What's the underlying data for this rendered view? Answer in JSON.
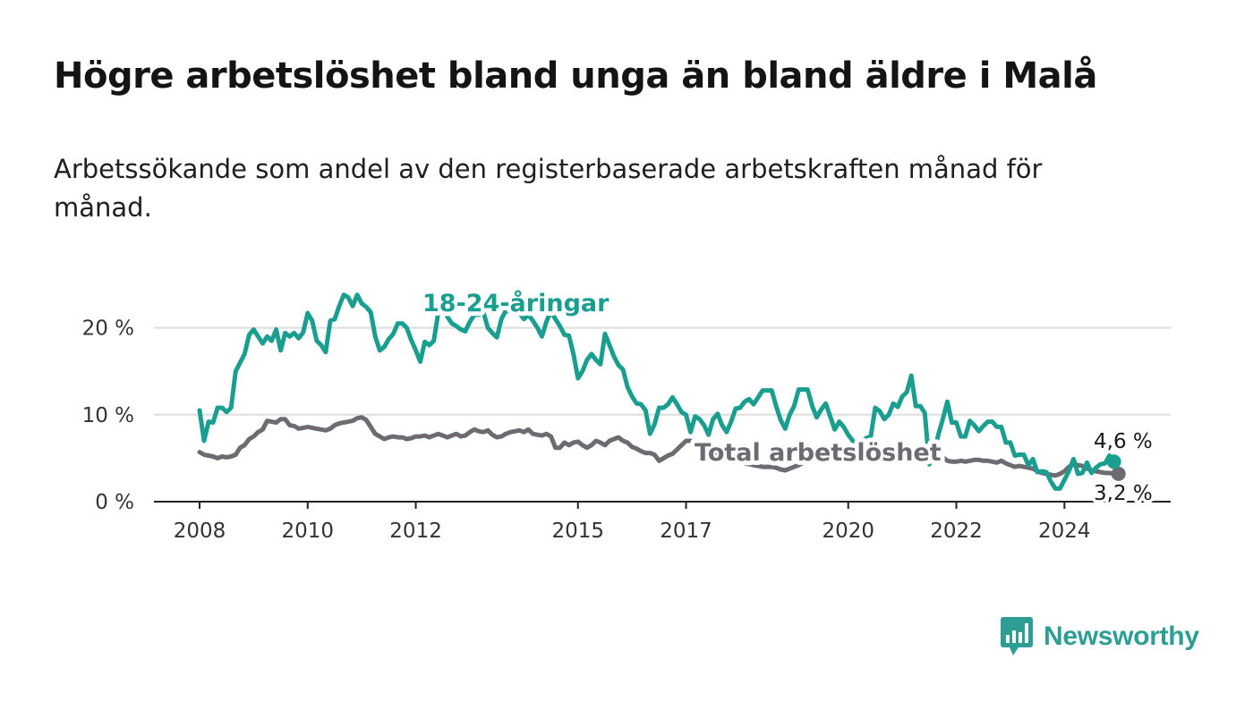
{
  "title": "Högre arbetslöshet bland unga än bland äldre i Malå",
  "subtitle": "Arbetssökande som andel av den registerbaserade arbetskraften månad för månad.",
  "brand": {
    "name": "Newsworthy",
    "logo_icon": "bar-chart-speech-bubble-icon",
    "color": "#2e9e95"
  },
  "chart_data": {
    "type": "line",
    "ylim": [
      0,
      25
    ],
    "xlim": [
      2008.0,
      2025.75
    ],
    "yticks": [
      {
        "value": 0,
        "label": "0 %"
      },
      {
        "value": 10,
        "label": "10 %"
      },
      {
        "value": 20,
        "label": "20 %"
      }
    ],
    "xticks": [
      {
        "value": 2008,
        "label": "2008"
      },
      {
        "value": 2010,
        "label": "2010"
      },
      {
        "value": 2012,
        "label": "2012"
      },
      {
        "value": 2015,
        "label": "2015"
      },
      {
        "value": 2017,
        "label": "2017"
      },
      {
        "value": 2020,
        "label": "2020"
      },
      {
        "value": 2022,
        "label": "2022"
      },
      {
        "value": 2024,
        "label": "2024"
      }
    ],
    "grid": true,
    "x_start": 2008.0,
    "x_step": 0.083333,
    "series": [
      {
        "name": "18-24-åringar",
        "color": "#1a9e90",
        "end_label": "4,6 %",
        "values": [
          10.5,
          7.0,
          9.2,
          9.1,
          10.8,
          10.8,
          10.3,
          10.8,
          15.0,
          16.0,
          17.0,
          19.2,
          19.8,
          19.0,
          18.2,
          19.0,
          18.5,
          19.8,
          17.4,
          19.4,
          19.0,
          19.4,
          18.8,
          19.5,
          21.7,
          20.8,
          18.5,
          18.0,
          17.2,
          20.8,
          21.0,
          22.5,
          23.8,
          23.5,
          22.5,
          23.8,
          22.8,
          22.4,
          21.8,
          19.0,
          17.4,
          17.8,
          18.7,
          19.3,
          20.5,
          20.5,
          20.0,
          18.6,
          17.4,
          16.1,
          18.4,
          18.0,
          18.5,
          21.8,
          22.5,
          21.3,
          20.5,
          20.2,
          19.8,
          19.6,
          20.7,
          21.5,
          21.5,
          21.8,
          20.0,
          19.4,
          18.9,
          21.0,
          22.0,
          21.8,
          22.2,
          21.7,
          21.0,
          21.5,
          20.8,
          20.0,
          19.0,
          20.7,
          21.9,
          21.0,
          20.2,
          19.2,
          19.1,
          17.0,
          14.2,
          15.0,
          16.3,
          17.0,
          16.3,
          15.8,
          19.3,
          18.0,
          16.7,
          15.7,
          15.2,
          13.2,
          12.1,
          11.3,
          11.2,
          10.5,
          7.8,
          8.9,
          10.8,
          10.8,
          11.2,
          12.0,
          11.2,
          10.3,
          10.0,
          8.0,
          9.8,
          9.5,
          8.8,
          7.7,
          9.5,
          10.1,
          8.8,
          8.0,
          9.2,
          10.7,
          10.8,
          11.5,
          11.8,
          11.2,
          12.0,
          12.8,
          12.8,
          12.8,
          11.0,
          9.4,
          8.4,
          10.0,
          11.0,
          12.9,
          12.9,
          12.9,
          11.0,
          9.7,
          10.6,
          11.3,
          9.8,
          8.3,
          9.2,
          8.6,
          7.7,
          7.0,
          6.7,
          7.0,
          7.3,
          7.5,
          10.8,
          10.4,
          9.5,
          10.0,
          11.3,
          10.9,
          12.1,
          12.6,
          14.5,
          11.0,
          11.0,
          10.2,
          4.3,
          5.5,
          7.7,
          9.5,
          11.5,
          9.1,
          9.1,
          7.5,
          7.5,
          9.3,
          8.8,
          8.1,
          8.7,
          9.2,
          9.2,
          8.6,
          8.6,
          6.8,
          6.8,
          5.3,
          5.4,
          5.4,
          4.2,
          4.9,
          3.4,
          3.5,
          3.4,
          2.3,
          1.5,
          1.5,
          2.5,
          3.5,
          4.9,
          3.2,
          3.3,
          4.5,
          3.3,
          3.9,
          4.3,
          4.4,
          5.3,
          4.6
        ]
      },
      {
        "name": "Total arbetslöshet",
        "color": "#6e6a72",
        "end_label": "3,2 %",
        "values": [
          5.7,
          5.4,
          5.3,
          5.2,
          5.0,
          5.2,
          5.1,
          5.2,
          5.4,
          6.2,
          6.5,
          7.2,
          7.5,
          8.0,
          8.3,
          9.3,
          9.2,
          9.1,
          9.5,
          9.5,
          8.8,
          8.7,
          8.4,
          8.5,
          8.6,
          8.5,
          8.4,
          8.3,
          8.2,
          8.4,
          8.8,
          9.0,
          9.1,
          9.2,
          9.3,
          9.6,
          9.7,
          9.4,
          8.6,
          7.8,
          7.5,
          7.2,
          7.4,
          7.5,
          7.4,
          7.4,
          7.2,
          7.3,
          7.5,
          7.5,
          7.6,
          7.4,
          7.6,
          7.8,
          7.6,
          7.4,
          7.6,
          7.8,
          7.5,
          7.6,
          8.0,
          8.3,
          8.1,
          8.0,
          8.2,
          7.7,
          7.4,
          7.5,
          7.8,
          8.0,
          8.1,
          8.2,
          8.0,
          8.3,
          7.8,
          7.7,
          7.6,
          7.8,
          7.5,
          6.2,
          6.2,
          6.8,
          6.5,
          6.8,
          6.9,
          6.5,
          6.2,
          6.5,
          7.0,
          6.8,
          6.5,
          7.0,
          7.2,
          7.4,
          7.0,
          6.8,
          6.3,
          6.1,
          5.8,
          5.6,
          5.6,
          5.4,
          4.7,
          5.0,
          5.3,
          5.5,
          6.0,
          6.5,
          7.0,
          7.0,
          6.8,
          6.5,
          6.2,
          6.0,
          5.8,
          5.5,
          5.3,
          5.0,
          4.8,
          4.6,
          4.5,
          4.4,
          4.3,
          4.2,
          4.1,
          4.0,
          4.0,
          4.0,
          3.9,
          3.7,
          3.6,
          3.8,
          4.0,
          4.2,
          4.5,
          4.7,
          4.8,
          4.9,
          5.0,
          5.0,
          5.1,
          5.2,
          5.2,
          5.2,
          5.1,
          5.1,
          5.2,
          5.2,
          5.3,
          5.2,
          5.1,
          5.3,
          5.4,
          5.4,
          5.3,
          5.2,
          5.2,
          5.3,
          5.2,
          5.1,
          5.0,
          5.0,
          5.0,
          5.0,
          5.1,
          5.1,
          4.7,
          4.6,
          4.6,
          4.7,
          4.6,
          4.7,
          4.8,
          4.8,
          4.7,
          4.7,
          4.6,
          4.5,
          4.7,
          4.4,
          4.2,
          4.0,
          4.1,
          4.0,
          3.9,
          3.8,
          3.5,
          3.3,
          3.2,
          3.1,
          3.0,
          3.2,
          3.5,
          4.0,
          4.3,
          4.2,
          4.1,
          3.8,
          3.6,
          3.5,
          3.4,
          3.3,
          3.3,
          3.2,
          3.2
        ]
      }
    ]
  }
}
